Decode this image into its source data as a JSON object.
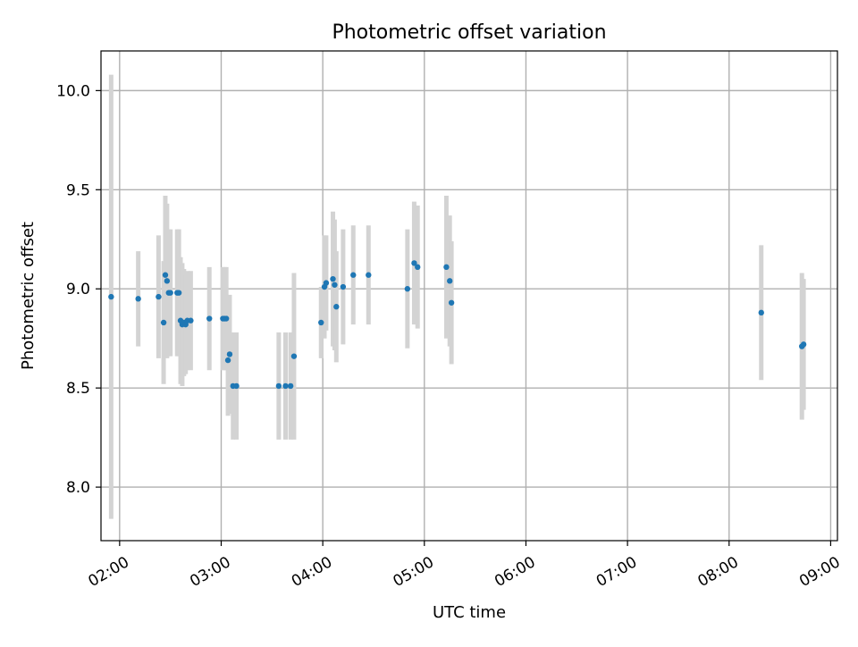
{
  "chart_data": {
    "type": "scatter",
    "title": "Photometric offset variation",
    "xlabel": "UTC time",
    "ylabel": "Photometric offset",
    "xlim": [
      "01:49",
      "09:04"
    ],
    "ylim": [
      7.73,
      10.2
    ],
    "grid": true,
    "legend": "none",
    "x_ticks": [
      "02:00",
      "03:00",
      "04:00",
      "05:00",
      "06:00",
      "07:00",
      "08:00",
      "09:00"
    ],
    "y_ticks": [
      "8.0",
      "8.5",
      "9.0",
      "9.5",
      "10.0"
    ],
    "colors": {
      "points": "#1f77b4",
      "error_bars": "#d3d3d3",
      "grid": "#b0b0b0",
      "axes": "#000000"
    },
    "series": [
      {
        "x": [
          "01:55",
          "02:11",
          "02:23",
          "02:26",
          "02:27",
          "02:28",
          "02:29",
          "02:30",
          "02:34",
          "02:35",
          "02:36",
          "02:37",
          "02:38",
          "02:39",
          "02:40",
          "02:42",
          "02:53",
          "03:01",
          "03:02",
          "03:03",
          "03:04",
          "03:05",
          "03:07",
          "03:09",
          "03:34",
          "03:38",
          "03:41",
          "03:43",
          "03:59",
          "04:01",
          "04:02",
          "04:06",
          "04:07",
          "04:08",
          "04:12",
          "04:18",
          "04:27",
          "04:50",
          "04:54",
          "04:56",
          "05:13",
          "05:15",
          "05:16",
          "08:19",
          "08:43",
          "08:44"
        ],
        "y": [
          8.96,
          8.95,
          8.96,
          8.83,
          9.07,
          9.04,
          8.98,
          8.98,
          8.98,
          8.98,
          8.84,
          8.82,
          8.83,
          8.82,
          8.84,
          8.84,
          8.85,
          8.85,
          8.85,
          8.85,
          8.64,
          8.67,
          8.51,
          8.51,
          8.51,
          8.51,
          8.51,
          8.66,
          8.83,
          9.01,
          9.03,
          9.05,
          9.02,
          8.91,
          9.01,
          9.07,
          9.07,
          9.0,
          9.13,
          9.11,
          9.11,
          9.04,
          8.93,
          8.88,
          8.71,
          8.72
        ],
        "yerr": [
          1.12,
          0.24,
          0.31,
          0.31,
          0.4,
          0.39,
          0.32,
          0.32,
          0.32,
          0.32,
          0.32,
          0.31,
          0.27,
          0.25,
          0.25,
          0.25,
          0.26,
          0.26,
          0.26,
          0.26,
          0.28,
          0.3,
          0.27,
          0.27,
          0.27,
          0.27,
          0.27,
          0.42,
          0.18,
          0.26,
          0.24,
          0.34,
          0.33,
          0.28,
          0.29,
          0.25,
          0.25,
          0.3,
          0.31,
          0.31,
          0.36,
          0.33,
          0.31,
          0.34,
          0.37,
          0.33
        ]
      }
    ]
  }
}
